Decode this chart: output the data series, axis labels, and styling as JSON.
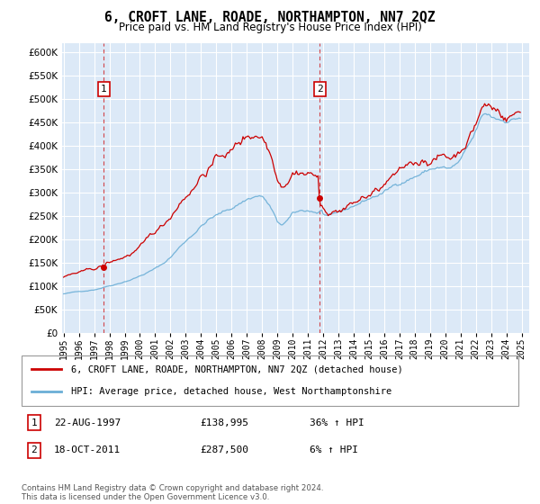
{
  "title": "6, CROFT LANE, ROADE, NORTHAMPTON, NN7 2QZ",
  "subtitle": "Price paid vs. HM Land Registry's House Price Index (HPI)",
  "legend_line1": "6, CROFT LANE, ROADE, NORTHAMPTON, NN7 2QZ (detached house)",
  "legend_line2": "HPI: Average price, detached house, West Northamptonshire",
  "sale1_date": "22-AUG-1997",
  "sale1_price": "£138,995",
  "sale1_hpi": "36% ↑ HPI",
  "sale1_year": 1997.64,
  "sale1_value": 138995,
  "sale2_date": "18-OCT-2011",
  "sale2_price": "£287,500",
  "sale2_hpi": "6% ↑ HPI",
  "sale2_year": 2011.79,
  "sale2_value": 287500,
  "footnote": "Contains HM Land Registry data © Crown copyright and database right 2024.\nThis data is licensed under the Open Government Licence v3.0.",
  "bg_color": "#dce9f7",
  "red_line_color": "#cc0000",
  "blue_line_color": "#6aaed6",
  "grid_color": "#ffffff",
  "ylim_min": 0,
  "ylim_max": 620000,
  "xlim_start": 1994.9,
  "xlim_end": 2025.5
}
